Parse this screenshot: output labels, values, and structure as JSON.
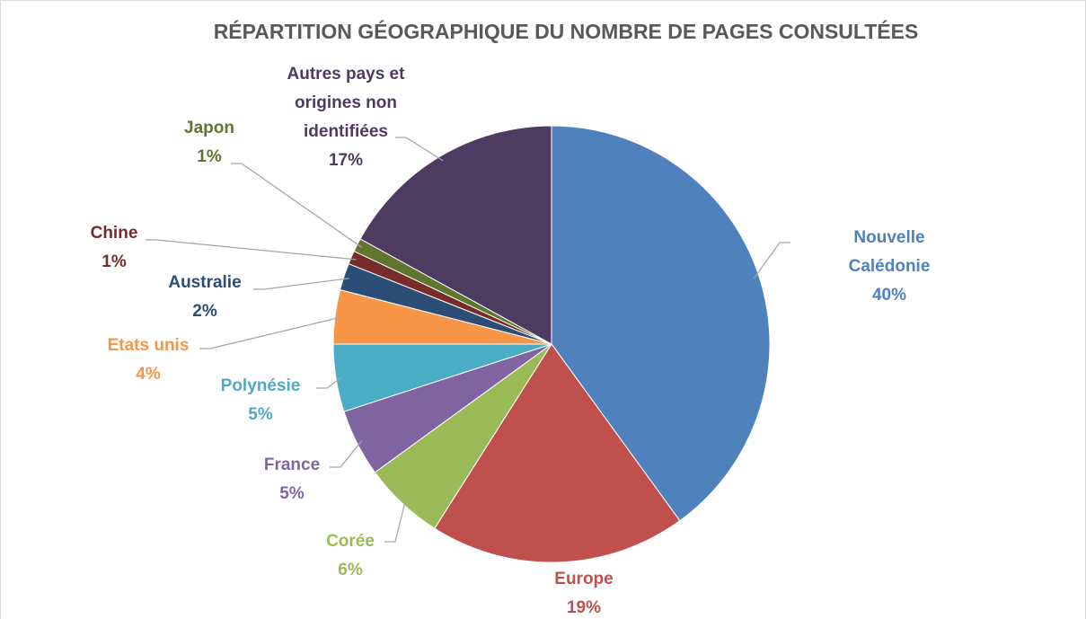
{
  "chart_data": {
    "type": "pie",
    "title": "RÉPARTITION GÉOGRAPHIQUE DU NOMBRE DE PAGES CONSULTÉES",
    "categories": [
      "Nouvelle Calédonie",
      "Europe",
      "Corée",
      "France",
      "Polynésie",
      "Etats unis",
      "Australie",
      "Chine",
      "Japon",
      "Autres pays et origines non identifiées"
    ],
    "values": [
      40,
      19,
      6,
      5,
      5,
      4,
      2,
      1,
      1,
      17
    ],
    "value_labels": [
      "40%",
      "19%",
      "6%",
      "5%",
      "5%",
      "4%",
      "2%",
      "1%",
      "1%",
      "17%"
    ],
    "colors": [
      "#4f81bd",
      "#c0504d",
      "#9bbb59",
      "#8064a2",
      "#4bacc6",
      "#f79646",
      "#2c4d75",
      "#772c2a",
      "#5f7530",
      "#4d3b62"
    ]
  }
}
